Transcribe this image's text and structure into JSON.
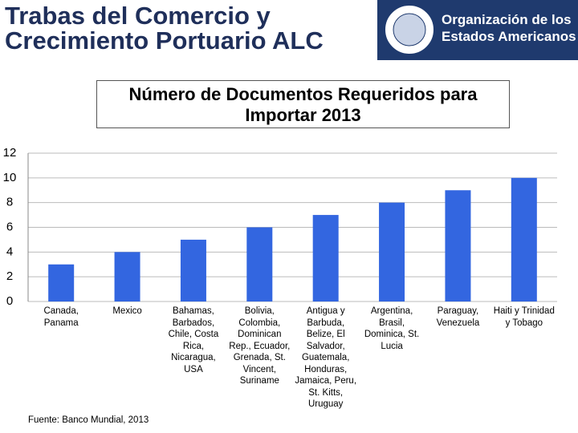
{
  "header": {
    "title": [
      "Trabas del Comercio y",
      "Crecimiento Portuario ALC"
    ],
    "organization": [
      "Organización de los",
      "Estados Americanos"
    ]
  },
  "chart_data": {
    "type": "bar",
    "title": "Número de Documentos Requeridos para Importar 2013",
    "categories": [
      "Canada, Panama",
      "Mexico",
      "Bahamas, Barbados, Chile, Costa Rica, Nicaragua, USA",
      "Bolivia, Colombia, Dominican Rep., Ecuador, Grenada, St. Vincent, Suriname",
      "Antigua y Barbuda, Belize, El Salvador, Guatemala, Honduras, Jamaica, Peru, St. Kitts, Uruguay",
      "Argentina, Brasil, Dominica, St. Lucia",
      "Paraguay, Venezuela",
      "Haiti y Trinidad y Tobago"
    ],
    "values": [
      3,
      4,
      5,
      6,
      7,
      8,
      9,
      10
    ],
    "color": "#3366e0",
    "ylim": [
      0,
      12
    ],
    "yticks": [
      0,
      2,
      4,
      6,
      8,
      10,
      12
    ],
    "grid": true
  },
  "source": "Fuente: Banco Mundial, 2013"
}
